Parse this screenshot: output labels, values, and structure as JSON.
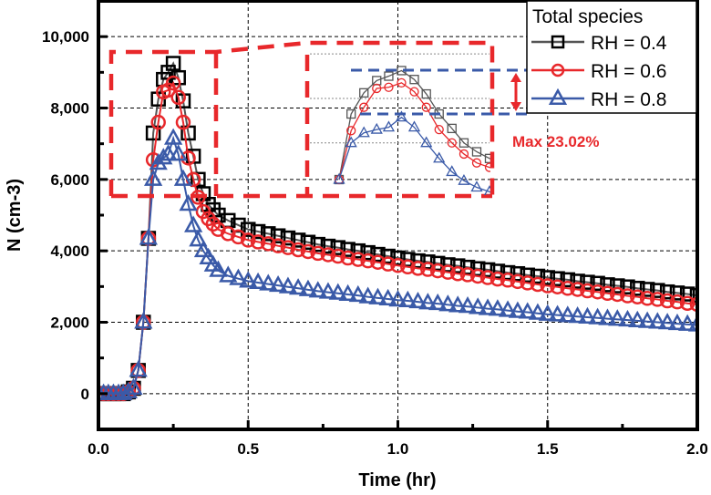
{
  "chart_data": {
    "type": "line",
    "title": "",
    "xlabel": "Time (hr)",
    "ylabel": "N (cm-3)",
    "xlim": [
      0,
      2.0
    ],
    "ylim": [
      -1000,
      11000
    ],
    "xticks": [
      "0.0",
      "0.5",
      "1.0",
      "1.5",
      "2.0"
    ],
    "yticks": [
      "0",
      "2,000",
      "4,000",
      "6,000",
      "8,000",
      "10,000"
    ],
    "grid": true,
    "legend": {
      "title": "Total species",
      "placement": "top-right"
    },
    "x": [
      0,
      0.017,
      0.033,
      0.05,
      0.067,
      0.083,
      0.1,
      0.117,
      0.133,
      0.15,
      0.167,
      0.183,
      0.2,
      0.217,
      0.233,
      0.25,
      0.267,
      0.283,
      0.3,
      0.317,
      0.333,
      0.35,
      0.367,
      0.383,
      0.4,
      0.433,
      0.467,
      0.5,
      0.533,
      0.567,
      0.6,
      0.633,
      0.667,
      0.7,
      0.733,
      0.767,
      0.8,
      0.833,
      0.867,
      0.9,
      0.933,
      0.967,
      1.0,
      1.033,
      1.067,
      1.1,
      1.133,
      1.167,
      1.2,
      1.233,
      1.267,
      1.3,
      1.333,
      1.367,
      1.4,
      1.433,
      1.467,
      1.5,
      1.533,
      1.567,
      1.6,
      1.633,
      1.667,
      1.7,
      1.733,
      1.767,
      1.8,
      1.833,
      1.867,
      1.9,
      1.933,
      1.967,
      2.0
    ],
    "series": [
      {
        "name": "RH = 0.4",
        "color": "#000000",
        "line_color": "#555555",
        "marker": "square",
        "values": [
          0,
          0,
          0,
          0,
          0,
          0,
          50,
          150,
          650,
          2000,
          4350,
          7300,
          8250,
          8800,
          9000,
          9250,
          8850,
          8200,
          7300,
          6650,
          6000,
          5600,
          5300,
          5150,
          5000,
          4850,
          4720,
          4600,
          4540,
          4480,
          4420,
          4360,
          4300,
          4240,
          4180,
          4130,
          4090,
          4040,
          4000,
          3950,
          3900,
          3850,
          3800,
          3760,
          3720,
          3690,
          3650,
          3610,
          3580,
          3540,
          3500,
          3470,
          3430,
          3390,
          3360,
          3320,
          3290,
          3250,
          3220,
          3190,
          3150,
          3120,
          3090,
          3050,
          3020,
          2990,
          2950,
          2920,
          2890,
          2850,
          2820,
          2790,
          2750
        ]
      },
      {
        "name": "RH = 0.6",
        "color": "#e8282b",
        "line_color": "#e8282b",
        "marker": "circle",
        "values": [
          0,
          0,
          0,
          0,
          0,
          0,
          50,
          150,
          650,
          2000,
          4350,
          6550,
          7600,
          8450,
          8500,
          8700,
          8300,
          7600,
          6600,
          6000,
          5500,
          5100,
          4900,
          4750,
          4600,
          4480,
          4390,
          4300,
          4250,
          4200,
          4140,
          4090,
          4030,
          3980,
          3930,
          3890,
          3850,
          3800,
          3760,
          3720,
          3680,
          3630,
          3590,
          3550,
          3510,
          3480,
          3440,
          3400,
          3360,
          3330,
          3290,
          3250,
          3210,
          3180,
          3140,
          3100,
          3060,
          3020,
          2990,
          2950,
          2920,
          2880,
          2850,
          2810,
          2780,
          2740,
          2710,
          2670,
          2640,
          2600,
          2570,
          2530,
          2500
        ]
      },
      {
        "name": "RH = 0.8",
        "color": "#3a5aa8",
        "line_color": "#3a5aa8",
        "marker": "triangle",
        "values": [
          0,
          0,
          0,
          0,
          0,
          0,
          50,
          150,
          650,
          2000,
          4350,
          6000,
          6450,
          6600,
          6700,
          7150,
          6700,
          6000,
          5300,
          4700,
          4300,
          4000,
          3800,
          3600,
          3450,
          3300,
          3220,
          3150,
          3110,
          3070,
          3030,
          2990,
          2950,
          2910,
          2870,
          2840,
          2810,
          2780,
          2750,
          2710,
          2680,
          2650,
          2620,
          2600,
          2570,
          2540,
          2520,
          2490,
          2460,
          2440,
          2410,
          2380,
          2360,
          2330,
          2300,
          2280,
          2250,
          2220,
          2200,
          2180,
          2160,
          2140,
          2120,
          2100,
          2080,
          2060,
          2040,
          2020,
          2000,
          1980,
          1960,
          1940,
          1920
        ]
      }
    ],
    "inset": {
      "description_of": "zoom of peak region",
      "xlim": [
        0.167,
        0.367
      ],
      "gridlines_y": [
        6000,
        8000,
        10000
      ],
      "annotation": "Max 23.02%"
    },
    "colors": {
      "highlight": "#e8282b",
      "guide": "#3a5aa8"
    }
  }
}
